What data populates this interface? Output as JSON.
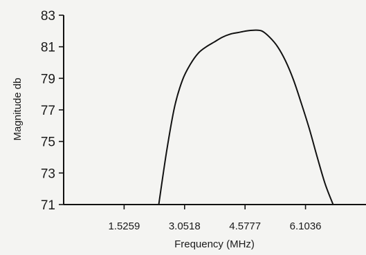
{
  "chart_data": {
    "type": "line",
    "title": "",
    "xlabel": "Frequency (MHz)",
    "ylabel": "Magnitude db",
    "xlim": [
      0,
      7.63
    ],
    "ylim": [
      71,
      83
    ],
    "x_ticks": [
      1.5259,
      3.0518,
      4.5777,
      6.1036
    ],
    "x_tick_labels": [
      "1.5259",
      "3.0518",
      "4.5777",
      "6.1036"
    ],
    "y_ticks": [
      71,
      73,
      75,
      77,
      79,
      81,
      83
    ],
    "y_tick_labels": [
      "71",
      "73",
      "75",
      "77",
      "79",
      "81",
      "83"
    ],
    "grid": false,
    "legend": "none",
    "series": [
      {
        "x": [
          2.4,
          2.6,
          2.8,
          3.0,
          3.2,
          3.4,
          3.6,
          3.8,
          4.0,
          4.2,
          4.4,
          4.6,
          4.8,
          5.0,
          5.2,
          5.4,
          5.6,
          5.8,
          6.0,
          6.2,
          6.4,
          6.6,
          6.8
        ],
        "y": [
          71.0,
          74.4,
          77.2,
          78.9,
          79.9,
          80.6,
          81.0,
          81.3,
          81.6,
          81.8,
          81.9,
          82.0,
          82.05,
          82.0,
          81.6,
          81.0,
          80.1,
          78.9,
          77.4,
          75.8,
          74.0,
          72.3,
          71.0
        ]
      }
    ]
  },
  "colors": {
    "background": "#f4f4f2",
    "ink": "#111111"
  }
}
